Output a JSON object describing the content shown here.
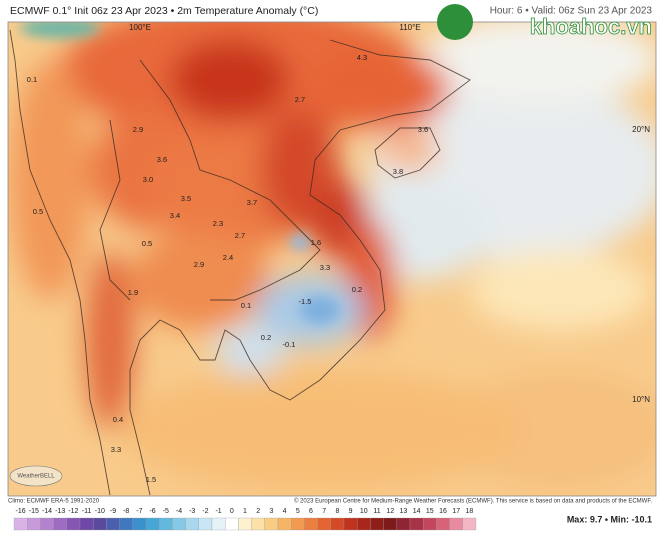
{
  "header": {
    "title": "ECMWF 0.1° Init 06z 23 Apr 2023 • 2m Temperature Anomaly (°C)",
    "valid": "Hour: 6 • Valid: 06z Sun 23 Apr 2023",
    "watermark": "khoahoc.vn"
  },
  "map": {
    "grid_labels": [
      "100°E",
      "110°E",
      "20°N",
      "10°N"
    ],
    "labels": [
      "4.3",
      "3.6",
      "2.7",
      "3.8",
      "2.9",
      "3.6",
      "3.0",
      "3.5",
      "3.4",
      "3.7",
      "2.3",
      "2.7",
      "1.6",
      "3.3",
      "2.9",
      "2.4",
      "0.5",
      "1.9",
      "0.1",
      "-1.5",
      "0.2",
      "0.2",
      "-0.1",
      "0.4",
      "3.3",
      "1.5",
      "0.1",
      "0.5"
    ],
    "logo": "WeatherBELL"
  },
  "footer": {
    "climo": "Climo: ECMWF ERA-5 1991-2020",
    "copyright": "© 2023 European Centre for Medium-Range Weather Forecasts (ECMWF). This service is based on data and products of the ECMWF.",
    "max_min": "Max: 9.7 • Min: -10.1"
  },
  "colorbar": {
    "ticks": [
      -16,
      -15,
      -14,
      -13,
      -12,
      -11,
      -10,
      -9,
      -8,
      -7,
      -6,
      -5,
      -4,
      -3,
      -2,
      -1,
      0,
      1,
      2,
      3,
      4,
      5,
      6,
      7,
      8,
      9,
      10,
      11,
      12,
      13,
      14,
      15,
      16,
      17,
      18
    ],
    "colors": [
      "#d9b3e6",
      "#c79bdb",
      "#b383cf",
      "#9d6bc2",
      "#8656b4",
      "#6f47a6",
      "#5a4a9e",
      "#4a5fae",
      "#3f78bf",
      "#3b91cc",
      "#46a6d6",
      "#63b8de",
      "#86c9e6",
      "#a9d8ee",
      "#c9e6f4",
      "#e6f2f8",
      "#ffffff",
      "#fdf1cf",
      "#fbe1a8",
      "#f9cd84",
      "#f6b467",
      "#f29a51",
      "#ec7f40",
      "#e36432",
      "#d44a27",
      "#c0341f",
      "#a8261b",
      "#8f1d19",
      "#7c1a1c",
      "#8e2434",
      "#a83248",
      "#c4455f",
      "#d86379",
      "#e88aa0",
      "#f3b6c5"
    ]
  }
}
